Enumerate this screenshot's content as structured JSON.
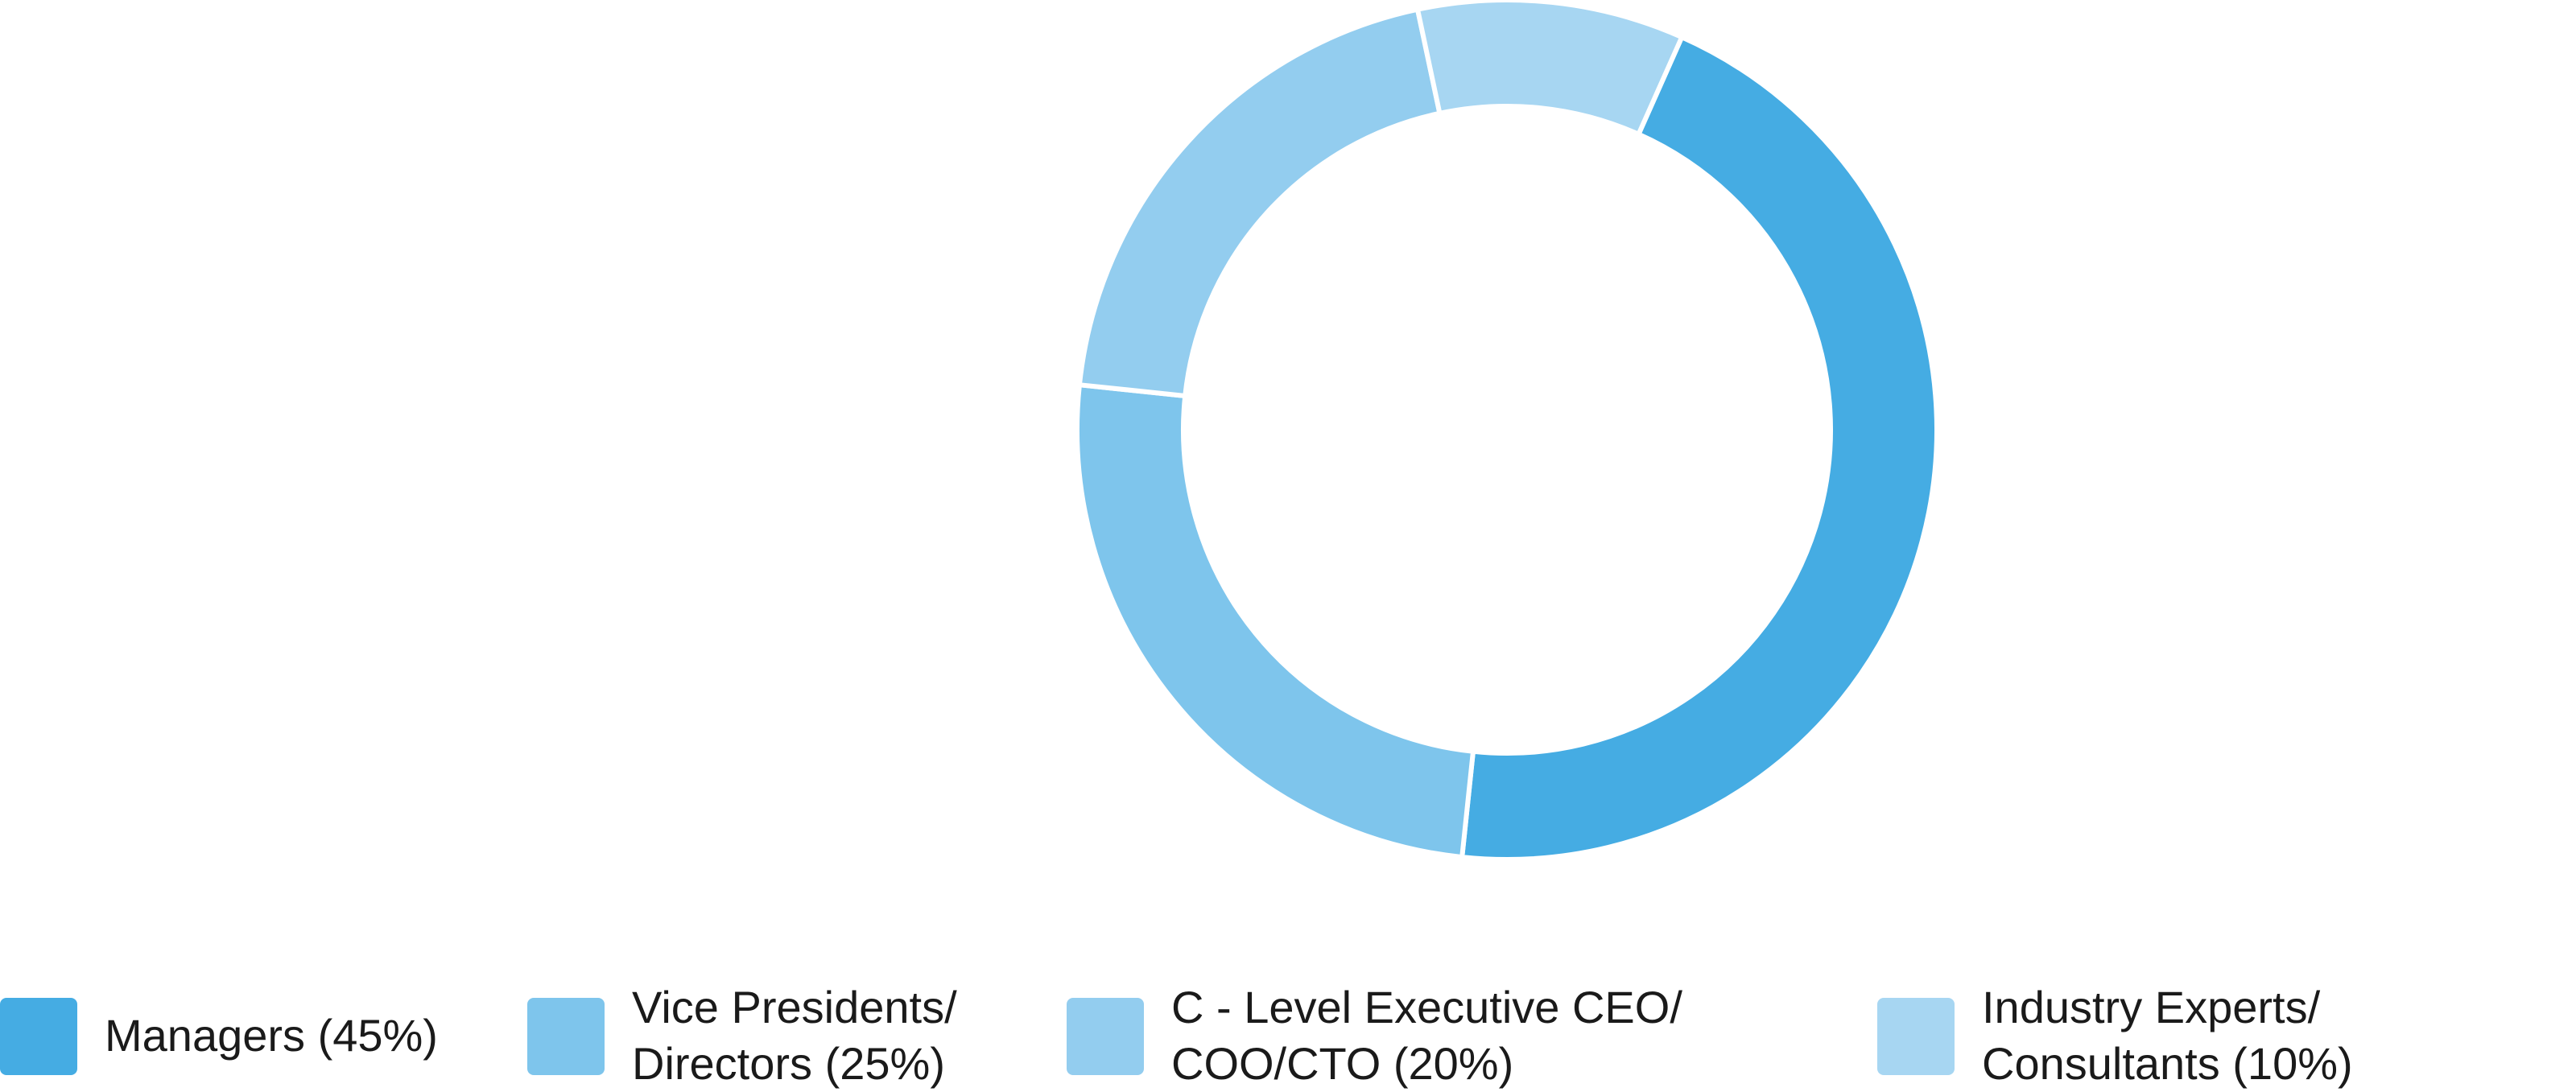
{
  "chart_data": {
    "type": "pie",
    "variant": "donut",
    "title": "",
    "slices": [
      {
        "label": "Managers (45%)",
        "value": 45,
        "color": "#45ACE3"
      },
      {
        "label": "Vice Presidents/\nDirectors (25%)",
        "value": 25,
        "color": "#7EC5EC"
      },
      {
        "label": "C - Level Executive CEO/\nCOO/CTO (20%)",
        "value": 20,
        "color": "#93CDEF"
      },
      {
        "label": "Industry Experts/\nConsultants (10%)",
        "value": 10,
        "color": "#A7D6F2"
      }
    ],
    "legend_position": "bottom"
  }
}
